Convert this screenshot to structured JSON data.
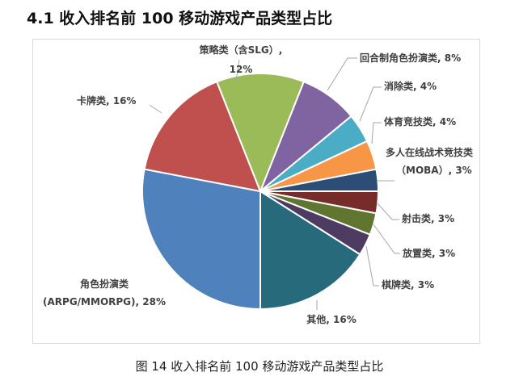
{
  "heading": "4.1 收入排名前 100 移动游戏产品类型占比",
  "caption": "图 14  收入排名前 100 移动游戏产品类型占比",
  "chart_data": {
    "type": "pie",
    "title": "",
    "slices": [
      {
        "label_lines": [
          "回合制角色扮演类, 8%"
        ],
        "value": 8,
        "color": "#8064A2"
      },
      {
        "label_lines": [
          "消除类, 4%"
        ],
        "value": 4,
        "color": "#4BACC6"
      },
      {
        "label_lines": [
          "体育竞技类, 4%"
        ],
        "value": 4,
        "color": "#F79646"
      },
      {
        "label_lines": [
          "多人在线战术竞技类",
          "（MOBA）, 3%"
        ],
        "value": 3,
        "color": "#2C4D75"
      },
      {
        "label_lines": [
          "射击类, 3%"
        ],
        "value": 3,
        "color": "#772C2A"
      },
      {
        "label_lines": [
          "放置类, 3%"
        ],
        "value": 3,
        "color": "#5F7530"
      },
      {
        "label_lines": [
          "棋牌类, 3%"
        ],
        "value": 3,
        "color": "#4D3B62"
      },
      {
        "label_lines": [
          "其他, 16%"
        ],
        "value": 16,
        "color": "#276A7C"
      },
      {
        "label_lines": [
          "角色扮演类",
          "(ARPG/MMORPG), 28%"
        ],
        "value": 28,
        "color": "#4F81BD"
      },
      {
        "label_lines": [
          "卡牌类, 16%"
        ],
        "value": 16,
        "color": "#C0504D"
      },
      {
        "label_lines": [
          "策略类（含SLG）,",
          "12%"
        ],
        "value": 12,
        "color": "#9BBB59"
      }
    ]
  }
}
